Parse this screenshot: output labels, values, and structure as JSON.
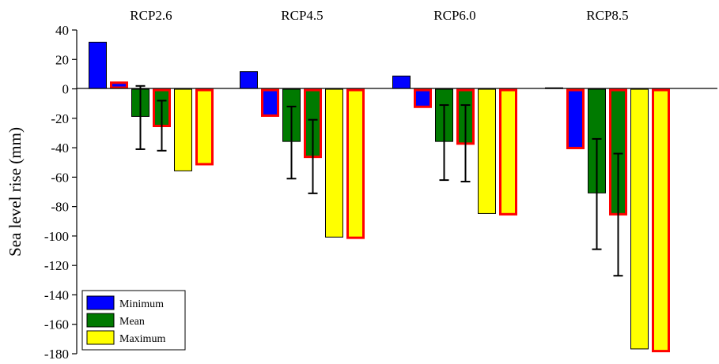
{
  "chart_data": {
    "type": "bar",
    "ylabel": "Sea level rise (mm)",
    "xlabel": "",
    "ylim": [
      -180,
      40
    ],
    "yticks": [
      40,
      20,
      0,
      -20,
      -40,
      -60,
      -80,
      -100,
      -120,
      -140,
      -160,
      -180
    ],
    "categories": [
      "RCP2.6",
      "RCP4.5",
      "RCP6.0",
      "RCP8.5"
    ],
    "legend_position": "bottom-left",
    "colors": {
      "Minimum": "#0000ff",
      "Mean": "#007a00",
      "Maximum": "#ffff00",
      "outline": "#000000",
      "outline_highlight": "#ff0000"
    },
    "legend": [
      {
        "name": "Minimum",
        "color": "#0000ff"
      },
      {
        "name": "Mean",
        "color": "#007a00"
      },
      {
        "name": "Maximum",
        "color": "#ffff00"
      }
    ],
    "bars_per_category": [
      {
        "series": "Minimum",
        "highlight": false
      },
      {
        "series": "Minimum",
        "highlight": true
      },
      {
        "series": "Mean",
        "highlight": false
      },
      {
        "series": "Mean",
        "highlight": true
      },
      {
        "series": "Maximum",
        "highlight": false
      },
      {
        "series": "Maximum",
        "highlight": true
      }
    ],
    "values": [
      [
        32,
        5,
        -19,
        -26,
        -56,
        -52
      ],
      [
        12,
        -19,
        -36,
        -47,
        -101,
        -102
      ],
      [
        9,
        -13,
        -36,
        -38,
        -85,
        -86
      ],
      [
        1,
        -41,
        -71,
        -86,
        -177,
        -179
      ]
    ],
    "error_bars": [
      [
        null,
        null,
        [
          -41,
          2
        ],
        [
          -42,
          -8
        ],
        null,
        null
      ],
      [
        null,
        null,
        [
          -61,
          -12
        ],
        [
          -71,
          -21
        ],
        null,
        null
      ],
      [
        null,
        null,
        [
          -62,
          -11
        ],
        [
          -63,
          -11
        ],
        null,
        null
      ],
      [
        null,
        null,
        [
          -109,
          -34
        ],
        [
          -127,
          -44
        ],
        null,
        null
      ]
    ]
  }
}
